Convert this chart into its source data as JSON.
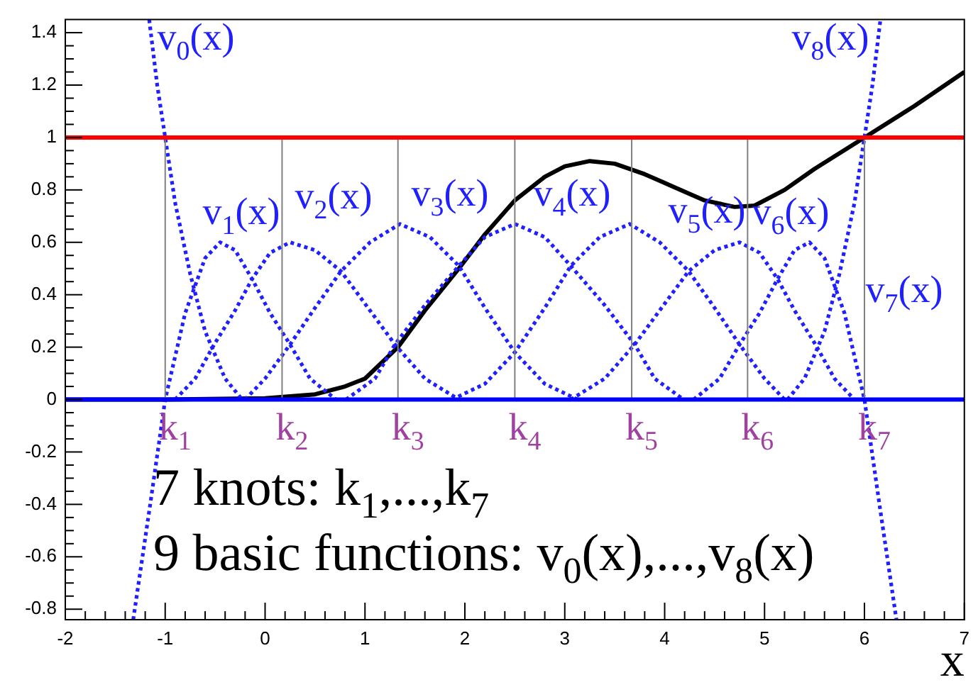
{
  "chart_data": {
    "type": "line",
    "xlabel": "x",
    "xlim": [
      -2,
      7
    ],
    "ylim": [
      -0.84,
      1.45
    ],
    "xticks": [
      -2,
      {
        "value": -1.8,
        "label": null
      },
      {
        "value": -1.6,
        "label": null
      },
      {
        "value": -1.4,
        "label": null
      },
      {
        "value": -1.2,
        "label": null
      },
      -1,
      {
        "value": -0.8,
        "label": null
      },
      {
        "value": -0.6,
        "label": null
      },
      {
        "value": -0.4,
        "label": null
      },
      {
        "value": -0.2,
        "label": null
      },
      0,
      {
        "value": 0.2,
        "label": null
      },
      {
        "value": 0.4,
        "label": null
      },
      {
        "value": 0.6,
        "label": null
      },
      {
        "value": 0.8,
        "label": null
      },
      1,
      {
        "value": 1.2,
        "label": null
      },
      {
        "value": 1.4,
        "label": null
      },
      {
        "value": 1.6,
        "label": null
      },
      {
        "value": 1.8,
        "label": null
      },
      2,
      {
        "value": 2.2,
        "label": null
      },
      {
        "value": 2.4,
        "label": null
      },
      {
        "value": 2.6,
        "label": null
      },
      {
        "value": 2.8,
        "label": null
      },
      3,
      {
        "value": 3.2,
        "label": null
      },
      {
        "value": 3.4,
        "label": null
      },
      {
        "value": 3.6,
        "label": null
      },
      {
        "value": 3.8,
        "label": null
      },
      4,
      {
        "value": 4.2,
        "label": null
      },
      {
        "value": 4.4,
        "label": null
      },
      {
        "value": 4.6,
        "label": null
      },
      {
        "value": 4.8,
        "label": null
      },
      5,
      {
        "value": 5.2,
        "label": null
      },
      {
        "value": 5.4,
        "label": null
      },
      {
        "value": 5.6,
        "label": null
      },
      {
        "value": 5.8,
        "label": null
      },
      6,
      {
        "value": 6.2,
        "label": null
      },
      {
        "value": 6.4,
        "label": null
      },
      {
        "value": 6.6,
        "label": null
      },
      {
        "value": 6.8,
        "label": null
      },
      7
    ],
    "yticks": [
      -0.8,
      {
        "value": -0.75,
        "label": null
      },
      {
        "value": -0.7,
        "label": null
      },
      {
        "value": -0.65,
        "label": null
      },
      -0.6,
      {
        "value": -0.55,
        "label": null
      },
      {
        "value": -0.5,
        "label": null
      },
      {
        "value": -0.45,
        "label": null
      },
      -0.4,
      {
        "value": -0.35,
        "label": null
      },
      {
        "value": -0.3,
        "label": null
      },
      {
        "value": -0.25,
        "label": null
      },
      -0.2,
      {
        "value": -0.15,
        "label": null
      },
      {
        "value": -0.1,
        "label": null
      },
      {
        "value": -0.05,
        "label": null
      },
      0,
      {
        "value": 0.05,
        "label": null
      },
      {
        "value": 0.1,
        "label": null
      },
      {
        "value": 0.15,
        "label": null
      },
      0.2,
      {
        "value": 0.25,
        "label": null
      },
      {
        "value": 0.3,
        "label": null
      },
      {
        "value": 0.35,
        "label": null
      },
      0.4,
      {
        "value": 0.45,
        "label": null
      },
      {
        "value": 0.5,
        "label": null
      },
      {
        "value": 0.55,
        "label": null
      },
      0.6,
      {
        "value": 0.65,
        "label": null
      },
      {
        "value": 0.7,
        "label": null
      },
      {
        "value": 0.75,
        "label": null
      },
      0.8,
      {
        "value": 0.85,
        "label": null
      },
      {
        "value": 0.9,
        "label": null
      },
      {
        "value": 0.95,
        "label": null
      },
      1,
      {
        "value": 1.05,
        "label": null
      },
      {
        "value": 1.1,
        "label": null
      },
      {
        "value": 1.15,
        "label": null
      },
      1.2,
      {
        "value": 1.25,
        "label": null
      },
      {
        "value": 1.3,
        "label": null
      },
      {
        "value": 1.35,
        "label": null
      },
      1.4
    ],
    "grid": false,
    "legend": false,
    "marker": "none",
    "ref_lines": [
      {
        "axis": "y",
        "value": 1,
        "color": "#ff0000"
      },
      {
        "axis": "y",
        "value": 0,
        "color": "#0000ff"
      }
    ],
    "series": [
      {
        "color": "#808080",
        "line_style": "solid",
        "x": [
          -1,
          -1
        ],
        "values": [
          0,
          1
        ]
      },
      {
        "color": "#808080",
        "line_style": "solid",
        "x": [
          0.17,
          0.17
        ],
        "values": [
          0,
          1
        ]
      },
      {
        "color": "#808080",
        "line_style": "solid",
        "x": [
          1.33,
          1.33
        ],
        "values": [
          0,
          1
        ]
      },
      {
        "color": "#808080",
        "line_style": "solid",
        "x": [
          2.5,
          2.5
        ],
        "values": [
          0,
          1
        ]
      },
      {
        "color": "#808080",
        "line_style": "solid",
        "x": [
          3.67,
          3.67
        ],
        "values": [
          0,
          1
        ]
      },
      {
        "color": "#808080",
        "line_style": "solid",
        "x": [
          4.83,
          4.83
        ],
        "values": [
          0,
          1
        ]
      },
      {
        "color": "#808080",
        "line_style": "solid",
        "x": [
          6,
          6
        ],
        "values": [
          0,
          1
        ]
      },
      {
        "name": "v$_{0}$(x)",
        "color": "#2020ff",
        "line_style": "dotted",
        "x": [
          -1.16,
          -1.08,
          -1,
          -0.9,
          -0.75,
          -0.6,
          -0.4,
          -0.23
        ],
        "values": [
          1.45,
          1.2,
          1,
          0.75,
          0.48,
          0.26,
          0.08,
          0
        ]
      },
      {
        "name": "v$_{1}$(x)",
        "color": "#2020ff",
        "line_style": "dotted",
        "x": [
          -1.32,
          -1.15,
          -1,
          -0.8,
          -0.6,
          -0.45,
          -0.3,
          -0.13,
          0.05,
          0.25,
          0.45,
          0.71
        ],
        "values": [
          -0.84,
          -0.4,
          0,
          0.33,
          0.54,
          0.6,
          0.57,
          0.46,
          0.33,
          0.21,
          0.08,
          0
        ]
      },
      {
        "name": "v$_{2}$(x)",
        "color": "#2020ff",
        "line_style": "dotted",
        "x": [
          -0.9,
          -0.7,
          -0.51,
          -0.3,
          -0.13,
          0.05,
          0.25,
          0.5,
          0.76,
          1.05,
          1.3,
          1.6,
          1.94
        ],
        "values": [
          0,
          0.08,
          0.21,
          0.34,
          0.46,
          0.56,
          0.6,
          0.57,
          0.49,
          0.34,
          0.21,
          0.08,
          0
        ]
      },
      {
        "name": "v$_{3}$(x)",
        "color": "#2020ff",
        "line_style": "dotted",
        "x": [
          -0.2,
          0,
          0.25,
          0.5,
          0.76,
          1.05,
          1.35,
          1.65,
          1.94,
          2.2,
          2.5,
          2.8,
          3.13
        ],
        "values": [
          0,
          0.08,
          0.21,
          0.35,
          0.49,
          0.6,
          0.67,
          0.62,
          0.51,
          0.35,
          0.18,
          0.06,
          0
        ]
      },
      {
        "name": "v$_{4}$(x)",
        "color": "#2020ff",
        "line_style": "dotted",
        "x": [
          0.81,
          1.1,
          1.3,
          1.6,
          1.94,
          2.2,
          2.5,
          2.8,
          3.06,
          3.4,
          3.7,
          3.9,
          4.19
        ],
        "values": [
          0,
          0.08,
          0.21,
          0.36,
          0.51,
          0.62,
          0.67,
          0.62,
          0.51,
          0.36,
          0.21,
          0.08,
          0
        ]
      },
      {
        "name": "v$_{5}$(x)",
        "color": "#2020ff",
        "line_style": "dotted",
        "x": [
          1.87,
          2.2,
          2.5,
          2.8,
          3.06,
          3.35,
          3.65,
          3.95,
          4.24,
          4.5,
          4.75,
          5,
          5.2
        ],
        "values": [
          0,
          0.06,
          0.18,
          0.35,
          0.51,
          0.62,
          0.67,
          0.6,
          0.49,
          0.35,
          0.21,
          0.08,
          0
        ]
      },
      {
        "name": "v$_{6}$(x)",
        "color": "#2020ff",
        "line_style": "dotted",
        "x": [
          3.06,
          3.4,
          3.7,
          3.95,
          4.24,
          4.5,
          4.75,
          4.95,
          5.13,
          5.3,
          5.51,
          5.7,
          5.9
        ],
        "values": [
          0,
          0.08,
          0.21,
          0.34,
          0.49,
          0.57,
          0.6,
          0.56,
          0.46,
          0.34,
          0.21,
          0.08,
          0
        ]
      },
      {
        "name": "v$_{7}$(x)",
        "color": "#2020ff",
        "line_style": "dotted",
        "x": [
          4.29,
          4.55,
          4.75,
          4.95,
          5.13,
          5.3,
          5.45,
          5.6,
          5.8,
          6,
          6.15,
          6.32
        ],
        "values": [
          0,
          0.08,
          0.21,
          0.33,
          0.46,
          0.57,
          0.6,
          0.54,
          0.33,
          0,
          -0.4,
          -0.84
        ]
      },
      {
        "name": "v$_{8}$(x)",
        "color": "#2020ff",
        "line_style": "dotted",
        "x": [
          5.23,
          5.4,
          5.6,
          5.75,
          5.9,
          6,
          6.08,
          6.16
        ],
        "values": [
          0,
          0.08,
          0.26,
          0.48,
          0.75,
          1,
          1.2,
          1.45
        ]
      },
      {
        "color": "#000000",
        "line_style": "solid",
        "x": [
          -2,
          -1,
          0,
          0.5,
          0.8,
          1,
          1.33,
          1.6,
          1.94,
          2.2,
          2.5,
          2.8,
          3,
          3.25,
          3.5,
          3.8,
          4.1,
          4.4,
          4.7,
          4.9,
          5.2,
          5.5,
          6,
          6.5,
          7
        ],
        "values": [
          0,
          0,
          0.005,
          0.02,
          0.05,
          0.08,
          0.2,
          0.34,
          0.5,
          0.63,
          0.76,
          0.85,
          0.89,
          0.91,
          0.9,
          0.86,
          0.81,
          0.76,
          0.735,
          0.74,
          0.8,
          0.88,
          1,
          1.12,
          1.25
        ]
      }
    ],
    "annotations": [
      {
        "text": "k$_{1}$",
        "x": -1,
        "y": 0
      },
      {
        "text": "k$_{2}$",
        "x": 0.17,
        "y": 0
      },
      {
        "text": "k$_{3}$",
        "x": 1.33,
        "y": 0
      },
      {
        "text": "k$_{4}$",
        "x": 2.5,
        "y": 0
      },
      {
        "text": "k$_{5}$",
        "x": 3.67,
        "y": 0
      },
      {
        "text": "k$_{6}$",
        "x": 4.83,
        "y": 0
      },
      {
        "text": "k$_{7}$",
        "x": 6,
        "y": 0
      },
      "7 knots: k$_{1}$,...,k$_{7}$",
      "9 basic functions: v$_{0}$(x),...,v$_{8}$(x)"
    ]
  }
}
